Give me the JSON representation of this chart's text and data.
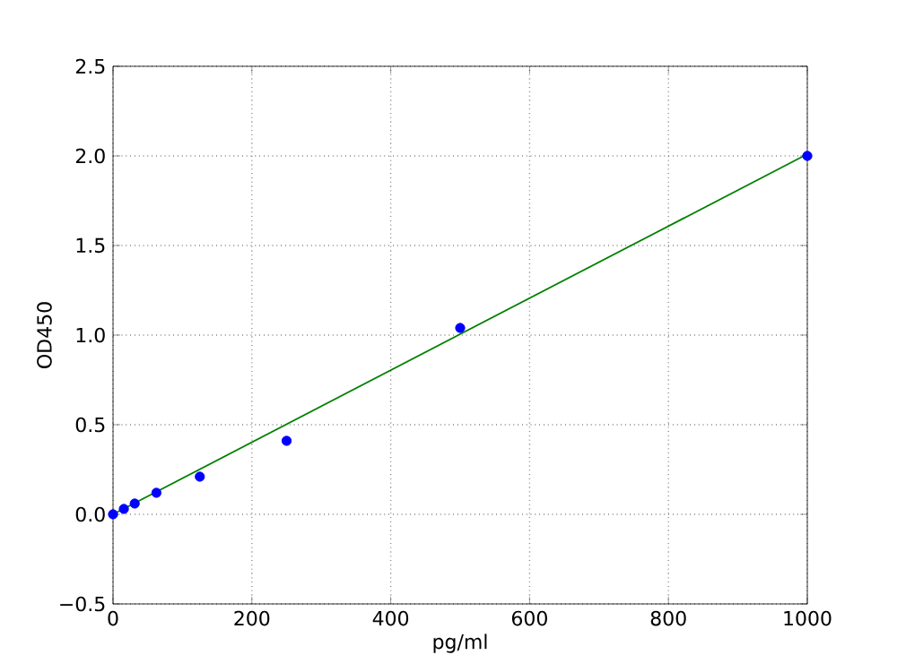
{
  "chart_data": {
    "type": "scatter",
    "xlabel": "pg/ml",
    "ylabel": "OD450",
    "xlim": [
      0,
      1000
    ],
    "ylim": [
      -0.5,
      2.5
    ],
    "xticks": [
      0,
      200,
      400,
      600,
      800,
      1000
    ],
    "yticks": [
      {
        "value": -0.5,
        "label": "−0.5"
      },
      {
        "value": 0,
        "label": "0.0"
      },
      {
        "value": 0.5,
        "label": "0.5"
      },
      {
        "value": 1,
        "label": "1.0"
      },
      {
        "value": 1.5,
        "label": "1.5"
      },
      {
        "value": 2,
        "label": "2.0"
      },
      {
        "value": 2.5,
        "label": "2.5"
      }
    ],
    "grid": true,
    "series": [
      {
        "color": "#0000ff",
        "marker": "circle",
        "x": [
          0,
          15.6,
          31.25,
          62.5,
          125,
          250,
          500,
          1000
        ],
        "values": [
          0.0,
          0.03,
          0.06,
          0.12,
          0.21,
          0.41,
          1.04,
          2.0
        ]
      },
      {
        "type": "line",
        "color": "#008000",
        "marker": "none",
        "x": [
          0,
          1000
        ],
        "values": [
          0.0,
          2.01
        ]
      }
    ]
  }
}
